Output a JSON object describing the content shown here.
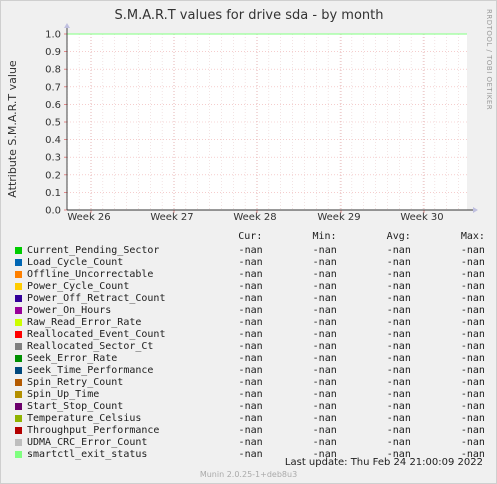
{
  "chart_data": {
    "type": "line",
    "title": "S.M.A.R.T values for drive sda - by month",
    "ylabel": "Attribute S.M.A.R.T value",
    "ylim": [
      0,
      1.0
    ],
    "yticks": [
      "0.0",
      "0.1",
      "0.2",
      "0.3",
      "0.4",
      "0.5",
      "0.6",
      "0.7",
      "0.8",
      "0.9",
      "1.0"
    ],
    "xticks": [
      "Week 26",
      "Week 27",
      "Week 28",
      "Week 29",
      "Week 30"
    ],
    "grid": true,
    "side_text": "RRDTOOL / TOBI OETIKER",
    "series": [
      {
        "name": "smartctl_exit_status",
        "color": "#99ff99",
        "values": [
          1.0,
          1.0
        ]
      }
    ]
  },
  "legend": {
    "headers": {
      "cur": "Cur:",
      "min": "Min:",
      "avg": "Avg:",
      "max": "Max:"
    },
    "rows": [
      {
        "name": "Current_Pending_Sector",
        "color": "#00cc00",
        "cur": "-nan",
        "min": "-nan",
        "avg": "-nan",
        "max": "-nan"
      },
      {
        "name": "Load_Cycle_Count",
        "color": "#0066b3",
        "cur": "-nan",
        "min": "-nan",
        "avg": "-nan",
        "max": "-nan"
      },
      {
        "name": "Offline_Uncorrectable",
        "color": "#ff8000",
        "cur": "-nan",
        "min": "-nan",
        "avg": "-nan",
        "max": "-nan"
      },
      {
        "name": "Power_Cycle_Count",
        "color": "#ffcc00",
        "cur": "-nan",
        "min": "-nan",
        "avg": "-nan",
        "max": "-nan"
      },
      {
        "name": "Power_Off_Retract_Count",
        "color": "#330099",
        "cur": "-nan",
        "min": "-nan",
        "avg": "-nan",
        "max": "-nan"
      },
      {
        "name": "Power_On_Hours",
        "color": "#990099",
        "cur": "-nan",
        "min": "-nan",
        "avg": "-nan",
        "max": "-nan"
      },
      {
        "name": "Raw_Read_Error_Rate",
        "color": "#ccff00",
        "cur": "-nan",
        "min": "-nan",
        "avg": "-nan",
        "max": "-nan"
      },
      {
        "name": "Reallocated_Event_Count",
        "color": "#ff0000",
        "cur": "-nan",
        "min": "-nan",
        "avg": "-nan",
        "max": "-nan"
      },
      {
        "name": "Reallocated_Sector_Ct",
        "color": "#808080",
        "cur": "-nan",
        "min": "-nan",
        "avg": "-nan",
        "max": "-nan"
      },
      {
        "name": "Seek_Error_Rate",
        "color": "#008f00",
        "cur": "-nan",
        "min": "-nan",
        "avg": "-nan",
        "max": "-nan"
      },
      {
        "name": "Seek_Time_Performance",
        "color": "#00487d",
        "cur": "-nan",
        "min": "-nan",
        "avg": "-nan",
        "max": "-nan"
      },
      {
        "name": "Spin_Retry_Count",
        "color": "#b35a00",
        "cur": "-nan",
        "min": "-nan",
        "avg": "-nan",
        "max": "-nan"
      },
      {
        "name": "Spin_Up_Time",
        "color": "#b38f00",
        "cur": "-nan",
        "min": "-nan",
        "avg": "-nan",
        "max": "-nan"
      },
      {
        "name": "Start_Stop_Count",
        "color": "#6b006b",
        "cur": "-nan",
        "min": "-nan",
        "avg": "-nan",
        "max": "-nan"
      },
      {
        "name": "Temperature_Celsius",
        "color": "#8fb300",
        "cur": "-nan",
        "min": "-nan",
        "avg": "-nan",
        "max": "-nan"
      },
      {
        "name": "Throughput_Performance",
        "color": "#b30000",
        "cur": "-nan",
        "min": "-nan",
        "avg": "-nan",
        "max": "-nan"
      },
      {
        "name": "UDMA_CRC_Error_Count",
        "color": "#bebebe",
        "cur": "-nan",
        "min": "-nan",
        "avg": "-nan",
        "max": "-nan"
      },
      {
        "name": "smartctl_exit_status",
        "color": "#80ff80",
        "cur": "-nan",
        "min": "-nan",
        "avg": "-nan",
        "max": "-nan"
      }
    ]
  },
  "last_update": "Last update:  Thu Feb 24 21:00:09 2022",
  "footer": "Munin 2.0.25-1+deb8u3"
}
